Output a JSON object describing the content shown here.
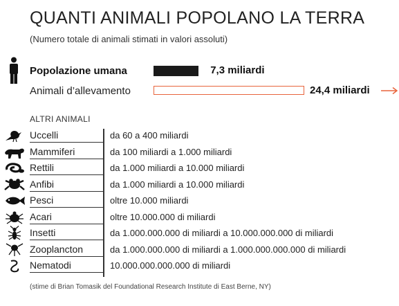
{
  "title": "QUANTI ANIMALI POPOLANO LA TERRA",
  "subtitle": "(Numero totale di animali stimati in valori assoluti)",
  "source": "(stime di Brian Tomasik del Foundational Research Institute di East Berne, NY)",
  "colors": {
    "human_bar": "#1a1a1a",
    "livestock_bar_outline": "#e8643c",
    "arrow": "#e8643c",
    "icons": "#111111"
  },
  "chart_data": {
    "type": "bar",
    "categories": [
      "Popolazione umana",
      "Animali d’allevamento"
    ],
    "values": [
      7.3,
      24.4
    ],
    "value_labels": [
      "7,3 miliardi",
      "24,4 miliardi"
    ],
    "unit": "miliardi",
    "title": "QUANTI ANIMALI POPOLANO LA TERRA",
    "xlabel": "",
    "ylabel": "",
    "xlim": [
      0,
      24.4
    ],
    "orientation": "horizontal",
    "second_bar_continues": true
  },
  "others": {
    "label": "ALTRI ANIMALI",
    "rows": [
      {
        "name": "Uccelli",
        "range": "da 60 a 400 miliardi",
        "icon": "bird-icon"
      },
      {
        "name": "Mammiferi",
        "range": "da 100 miliardi a 1.000 miliardi",
        "icon": "mammal-icon"
      },
      {
        "name": "Rettili",
        "range": "da 1.000 miliardi a 10.000 miliardi",
        "icon": "snake-icon"
      },
      {
        "name": "Anfibi",
        "range": "da 1.000 miliardi a 10.000 miliardi",
        "icon": "frog-icon"
      },
      {
        "name": "Pesci",
        "range": "oltre 10.000 miliardi",
        "icon": "fish-icon"
      },
      {
        "name": "Acari",
        "range": "oltre 10.000.000 di miliardi",
        "icon": "mite-icon"
      },
      {
        "name": "Insetti",
        "range": "da 1.000.000.000 di miliardi a 10.000.000.000 di miliardi",
        "icon": "insect-icon"
      },
      {
        "name": "Zooplancton",
        "range": "da 1.000.000.000 di miliardi a 1.000.000.000.000 di miliardi",
        "icon": "zooplankton-icon"
      },
      {
        "name": "Nematodi",
        "range": "10.000.000.000.000 di miliardi",
        "icon": "nematode-icon"
      }
    ]
  }
}
